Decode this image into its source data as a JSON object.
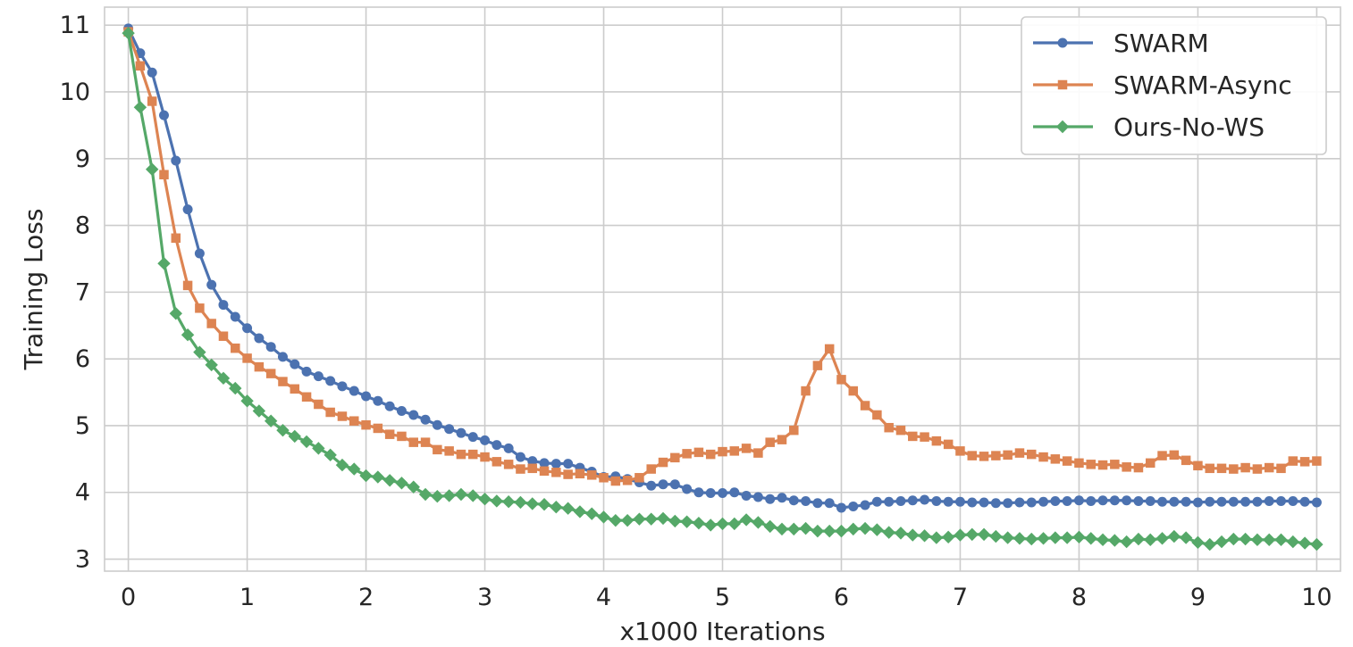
{
  "chart_data": {
    "type": "line",
    "title": "",
    "xlabel": "x1000 Iterations",
    "ylabel": "Training Loss",
    "xlim": [
      -0.2,
      10.2
    ],
    "ylim": [
      2.82,
      11.27
    ],
    "xticks": [
      0,
      1,
      2,
      3,
      4,
      5,
      6,
      7,
      8,
      9,
      10
    ],
    "yticks": [
      3,
      4,
      5,
      6,
      7,
      8,
      9,
      10,
      11
    ],
    "grid": true,
    "legend_position": "top-right",
    "x": [
      0,
      0.1,
      0.2,
      0.3,
      0.4,
      0.5,
      0.6,
      0.7,
      0.8,
      0.9,
      1.0,
      1.1,
      1.2,
      1.3,
      1.4,
      1.5,
      1.6,
      1.7,
      1.8,
      1.9,
      2.0,
      2.1,
      2.2,
      2.3,
      2.4,
      2.5,
      2.6,
      2.7,
      2.8,
      2.9,
      3.0,
      3.1,
      3.2,
      3.3,
      3.4,
      3.5,
      3.6,
      3.7,
      3.8,
      3.9,
      4.0,
      4.1,
      4.2,
      4.3,
      4.4,
      4.5,
      4.6,
      4.7,
      4.8,
      4.9,
      5.0,
      5.1,
      5.2,
      5.3,
      5.4,
      5.5,
      5.6,
      5.7,
      5.8,
      5.9,
      6.0,
      6.1,
      6.2,
      6.3,
      6.4,
      6.5,
      6.6,
      6.7,
      6.8,
      6.9,
      7.0,
      7.1,
      7.2,
      7.3,
      7.4,
      7.5,
      7.6,
      7.7,
      7.8,
      7.9,
      8.0,
      8.1,
      8.2,
      8.3,
      8.4,
      8.5,
      8.6,
      8.7,
      8.8,
      8.9,
      9.0,
      9.1,
      9.2,
      9.3,
      9.4,
      9.5,
      9.6,
      9.7,
      9.8,
      9.9,
      10.0
    ],
    "series": [
      {
        "name": "SWARM",
        "color": "#4c72b0",
        "marker": "circle",
        "values": [
          10.95,
          10.58,
          10.29,
          9.65,
          8.97,
          8.24,
          7.58,
          7.11,
          6.81,
          6.63,
          6.46,
          6.31,
          6.18,
          6.03,
          5.92,
          5.81,
          5.74,
          5.67,
          5.59,
          5.52,
          5.44,
          5.37,
          5.29,
          5.22,
          5.16,
          5.09,
          5.01,
          4.95,
          4.89,
          4.83,
          4.78,
          4.71,
          4.66,
          4.53,
          4.47,
          4.44,
          4.43,
          4.43,
          4.37,
          4.31,
          4.23,
          4.24,
          4.2,
          4.15,
          4.1,
          4.12,
          4.12,
          4.05,
          4.0,
          3.99,
          3.99,
          4.0,
          3.95,
          3.93,
          3.9,
          3.92,
          3.88,
          3.87,
          3.84,
          3.84,
          3.77,
          3.79,
          3.81,
          3.86,
          3.86,
          3.87,
          3.88,
          3.89,
          3.87,
          3.86,
          3.86,
          3.85,
          3.85,
          3.84,
          3.84,
          3.85,
          3.85,
          3.86,
          3.87,
          3.87,
          3.88,
          3.87,
          3.88,
          3.88,
          3.88,
          3.87,
          3.87,
          3.86,
          3.86,
          3.86,
          3.85,
          3.86,
          3.86,
          3.86,
          3.86,
          3.86,
          3.87,
          3.87,
          3.87,
          3.86,
          3.85
        ]
      },
      {
        "name": "SWARM-Async",
        "color": "#dd8452",
        "marker": "square",
        "values": [
          10.9,
          10.39,
          9.86,
          8.76,
          7.81,
          7.1,
          6.76,
          6.53,
          6.34,
          6.16,
          6.01,
          5.88,
          5.78,
          5.66,
          5.55,
          5.43,
          5.32,
          5.2,
          5.14,
          5.07,
          5.01,
          4.96,
          4.87,
          4.84,
          4.75,
          4.75,
          4.64,
          4.62,
          4.57,
          4.57,
          4.53,
          4.46,
          4.42,
          4.35,
          4.36,
          4.32,
          4.3,
          4.27,
          4.28,
          4.26,
          4.22,
          4.17,
          4.18,
          4.22,
          4.35,
          4.45,
          4.52,
          4.58,
          4.6,
          4.57,
          4.61,
          4.62,
          4.66,
          4.59,
          4.75,
          4.79,
          4.93,
          5.52,
          5.9,
          6.15,
          5.69,
          5.52,
          5.3,
          5.16,
          4.97,
          4.93,
          4.84,
          4.83,
          4.77,
          4.72,
          4.62,
          4.55,
          4.54,
          4.55,
          4.56,
          4.59,
          4.57,
          4.53,
          4.5,
          4.47,
          4.44,
          4.42,
          4.41,
          4.42,
          4.38,
          4.37,
          4.44,
          4.55,
          4.56,
          4.48,
          4.4,
          4.36,
          4.36,
          4.35,
          4.37,
          4.35,
          4.37,
          4.36,
          4.47,
          4.46,
          4.47
        ]
      },
      {
        "name": "Ours-No-WS",
        "color": "#55a868",
        "marker": "diamond",
        "values": [
          10.88,
          9.77,
          8.84,
          7.43,
          6.68,
          6.36,
          6.1,
          5.91,
          5.71,
          5.56,
          5.37,
          5.22,
          5.07,
          4.93,
          4.84,
          4.76,
          4.66,
          4.56,
          4.41,
          4.35,
          4.25,
          4.23,
          4.18,
          4.14,
          4.08,
          3.97,
          3.94,
          3.95,
          3.97,
          3.95,
          3.9,
          3.87,
          3.86,
          3.85,
          3.83,
          3.82,
          3.78,
          3.76,
          3.71,
          3.68,
          3.63,
          3.58,
          3.58,
          3.6,
          3.6,
          3.61,
          3.57,
          3.56,
          3.54,
          3.51,
          3.53,
          3.53,
          3.59,
          3.55,
          3.49,
          3.45,
          3.45,
          3.46,
          3.42,
          3.42,
          3.42,
          3.45,
          3.46,
          3.44,
          3.4,
          3.39,
          3.36,
          3.35,
          3.32,
          3.33,
          3.36,
          3.37,
          3.37,
          3.34,
          3.32,
          3.31,
          3.3,
          3.31,
          3.32,
          3.32,
          3.33,
          3.31,
          3.29,
          3.28,
          3.26,
          3.3,
          3.29,
          3.31,
          3.34,
          3.32,
          3.25,
          3.22,
          3.26,
          3.3,
          3.3,
          3.29,
          3.29,
          3.29,
          3.26,
          3.24,
          3.22
        ]
      }
    ]
  }
}
